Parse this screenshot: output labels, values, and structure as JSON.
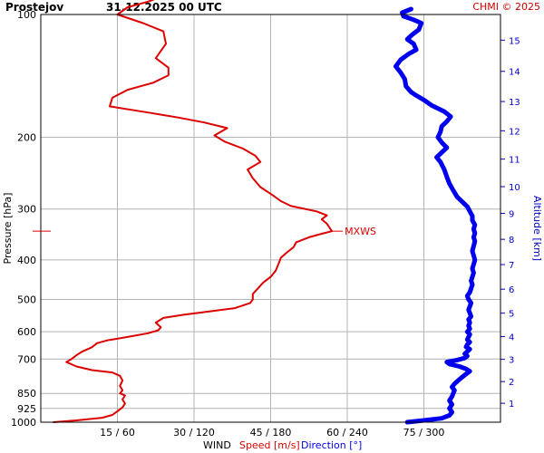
{
  "header": {
    "station": "Prostejov",
    "datetime": "31.12.2025 00 UTC",
    "copyright": "CHMI © 2025"
  },
  "labels": {
    "ylabel": "Pressure [hPa]",
    "ylabel_right": "Altitude [km]",
    "xlabel_wind": "WIND",
    "xlabel_speed": "Speed [m/s]",
    "xlabel_direction": "Direction [°]",
    "mxws": "MXWS"
  },
  "colors": {
    "speed": "#dd0000",
    "direction": "#0000ee",
    "grid": "#b4b4b4",
    "altitude": "#0000cc"
  },
  "chart_data": {
    "type": "line",
    "y_scale": "log",
    "y_ticks": [
      "100",
      "200",
      "300",
      "400",
      "500",
      "600",
      "700",
      "850",
      "925",
      "1000"
    ],
    "x_ticks": [
      "15 / 60",
      "30 / 120",
      "45 / 180",
      "60 / 240",
      "75 / 300"
    ],
    "x_speed_range": [
      0,
      90
    ],
    "x_direction_range": [
      0,
      360
    ],
    "altitude_ticks_km": [
      "1",
      "2",
      "3",
      "4",
      "5",
      "6",
      "7",
      "8",
      "9",
      "10",
      "11",
      "12",
      "13",
      "14",
      "15"
    ],
    "series": [
      {
        "name": "Speed [m/s]",
        "unit": "m/s",
        "points": [
          [
            2.5,
            1000
          ],
          [
            7,
            990
          ],
          [
            12,
            975
          ],
          [
            14,
            960
          ],
          [
            15,
            940
          ],
          [
            16,
            920
          ],
          [
            16.5,
            900
          ],
          [
            16,
            880
          ],
          [
            16.5,
            860
          ],
          [
            15.5,
            850
          ],
          [
            16,
            835
          ],
          [
            15.5,
            815
          ],
          [
            16,
            790
          ],
          [
            15.5,
            770
          ],
          [
            14,
            755
          ],
          [
            10,
            745
          ],
          [
            7,
            730
          ],
          [
            5,
            712
          ],
          [
            6,
            700
          ],
          [
            7,
            685
          ],
          [
            8,
            672
          ],
          [
            10,
            655
          ],
          [
            11,
            640
          ],
          [
            13,
            630
          ],
          [
            17,
            618
          ],
          [
            21,
            605
          ],
          [
            23,
            595
          ],
          [
            23.5,
            585
          ],
          [
            22.5,
            570
          ],
          [
            24,
            555
          ],
          [
            28,
            545
          ],
          [
            33,
            535
          ],
          [
            38,
            525
          ],
          [
            41,
            510
          ],
          [
            41.5,
            500
          ],
          [
            41.5,
            485
          ],
          [
            42.5,
            470
          ],
          [
            43.5,
            455
          ],
          [
            45,
            440
          ],
          [
            46,
            425
          ],
          [
            46.5,
            410
          ],
          [
            47,
            395
          ],
          [
            48,
            385
          ],
          [
            49.5,
            372
          ],
          [
            50,
            362
          ],
          [
            52.5,
            352
          ],
          [
            55,
            345
          ],
          [
            57,
            340
          ],
          [
            56.5,
            333
          ],
          [
            56,
            326
          ],
          [
            55,
            318
          ],
          [
            56,
            311
          ],
          [
            54,
            304
          ],
          [
            49,
            295
          ],
          [
            47,
            287
          ],
          [
            45.5,
            278
          ],
          [
            43,
            265
          ],
          [
            41.5,
            252
          ],
          [
            40.5,
            240
          ],
          [
            43,
            230
          ],
          [
            42,
            222
          ],
          [
            39.5,
            213
          ],
          [
            36,
            205
          ],
          [
            34,
            198
          ],
          [
            36.5,
            190
          ],
          [
            32,
            184
          ],
          [
            27,
            179
          ],
          [
            21,
            174
          ],
          [
            13.5,
            168
          ],
          [
            14,
            160
          ],
          [
            17,
            153
          ],
          [
            22,
            147
          ],
          [
            25,
            141
          ],
          [
            25,
            135
          ],
          [
            22.5,
            128
          ],
          [
            24.5,
            118
          ],
          [
            24,
            110
          ],
          [
            20,
            105
          ],
          [
            15,
            100
          ],
          [
            17,
            96
          ],
          [
            21,
            93
          ],
          [
            24,
            90
          ]
        ]
      },
      {
        "name": "Direction [°]",
        "unit": "°",
        "points": [
          [
            287,
            1000
          ],
          [
            300,
            990
          ],
          [
            314,
            978
          ],
          [
            320,
            962
          ],
          [
            322,
            945
          ],
          [
            320,
            925
          ],
          [
            322,
            905
          ],
          [
            320,
            885
          ],
          [
            322,
            865
          ],
          [
            323,
            850
          ],
          [
            324,
            835
          ],
          [
            322,
            820
          ],
          [
            324,
            805
          ],
          [
            327,
            790
          ],
          [
            330,
            775
          ],
          [
            333,
            762
          ],
          [
            336,
            750
          ],
          [
            333,
            740
          ],
          [
            328,
            730
          ],
          [
            320,
            720
          ],
          [
            318,
            712
          ],
          [
            326,
            704
          ],
          [
            332,
            696
          ],
          [
            334,
            688
          ],
          [
            332,
            680
          ],
          [
            334,
            671
          ],
          [
            336,
            662
          ],
          [
            333,
            654
          ],
          [
            334,
            645
          ],
          [
            336,
            636
          ],
          [
            334,
            627
          ],
          [
            335,
            618
          ],
          [
            336,
            609
          ],
          [
            334,
            600
          ],
          [
            336,
            590
          ],
          [
            335,
            580
          ],
          [
            336,
            570
          ],
          [
            335,
            560
          ],
          [
            337,
            550
          ],
          [
            336,
            540
          ],
          [
            335,
            530
          ],
          [
            336,
            520
          ],
          [
            337,
            510
          ],
          [
            335,
            500
          ],
          [
            334,
            490
          ],
          [
            336,
            480
          ],
          [
            337,
            470
          ],
          [
            338,
            460
          ],
          [
            337,
            450
          ],
          [
            338,
            440
          ],
          [
            339,
            430
          ],
          [
            338,
            420
          ],
          [
            339,
            410
          ],
          [
            340,
            400
          ],
          [
            339,
            390
          ],
          [
            338,
            380
          ],
          [
            339,
            370
          ],
          [
            340,
            360
          ],
          [
            339,
            352
          ],
          [
            340,
            344
          ],
          [
            339,
            336
          ],
          [
            340,
            328
          ],
          [
            338,
            320
          ],
          [
            338,
            312
          ],
          [
            336,
            304
          ],
          [
            334,
            296
          ],
          [
            330,
            288
          ],
          [
            326,
            280
          ],
          [
            323,
            270
          ],
          [
            320,
            260
          ],
          [
            318,
            250
          ],
          [
            316,
            240
          ],
          [
            313,
            230
          ],
          [
            310,
            224
          ],
          [
            314,
            218
          ],
          [
            318,
            212
          ],
          [
            314,
            206
          ],
          [
            311,
            200
          ],
          [
            313,
            194
          ],
          [
            314,
            188
          ],
          [
            318,
            183
          ],
          [
            321,
            178
          ],
          [
            316,
            173
          ],
          [
            306,
            167
          ],
          [
            300,
            162
          ],
          [
            294,
            158
          ],
          [
            290,
            155
          ],
          [
            286,
            150
          ],
          [
            285,
            144
          ],
          [
            282,
            139
          ],
          [
            278,
            134
          ],
          [
            282,
            129
          ],
          [
            288,
            125
          ],
          [
            294,
            122
          ],
          [
            292,
            118
          ],
          [
            287,
            115
          ],
          [
            291,
            112
          ],
          [
            296,
            109
          ],
          [
            298,
            105
          ],
          [
            292,
            103
          ],
          [
            284,
            101
          ],
          [
            283,
            99
          ],
          [
            290,
            97
          ]
        ]
      }
    ]
  }
}
